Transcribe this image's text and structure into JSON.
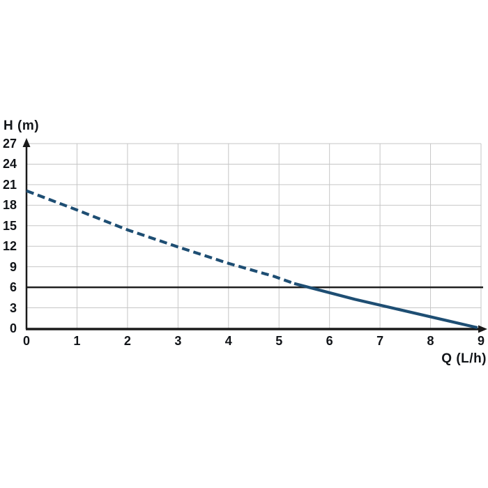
{
  "chart": {
    "y_axis_title": "H (m)",
    "x_axis_title": "Q (L/h)"
  },
  "chart_data": {
    "type": "line",
    "title": "",
    "xlabel": "Q (L/h)",
    "ylabel": "H (m)",
    "xlim": [
      0,
      9
    ],
    "ylim": [
      0,
      27
    ],
    "x_ticks": [
      0,
      1,
      2,
      3,
      4,
      5,
      6,
      7,
      8,
      9
    ],
    "y_ticks": [
      0,
      3,
      6,
      9,
      12,
      15,
      18,
      21,
      24,
      27
    ],
    "grid": true,
    "legend_position": "none",
    "colors": {
      "curve": "#1e4e73",
      "grid": "#c6c6c6",
      "axis": "#1a1a1a",
      "reference_line": "#1f1f1f",
      "text": "#111418"
    },
    "reference_line_y": 6,
    "series": [
      {
        "name": "pump-curve-dashed",
        "style": "dashed",
        "points": [
          [
            0,
            20.1
          ],
          [
            1,
            17.3
          ],
          [
            2,
            14.4
          ],
          [
            3,
            11.9
          ],
          [
            4,
            9.5
          ],
          [
            4.9,
            7.6
          ],
          [
            5.3,
            6.55
          ]
        ]
      },
      {
        "name": "pump-curve-solid",
        "style": "solid",
        "points": [
          [
            5.3,
            6.55
          ],
          [
            6.5,
            4.25
          ],
          [
            8.93,
            0.1
          ]
        ]
      }
    ]
  }
}
